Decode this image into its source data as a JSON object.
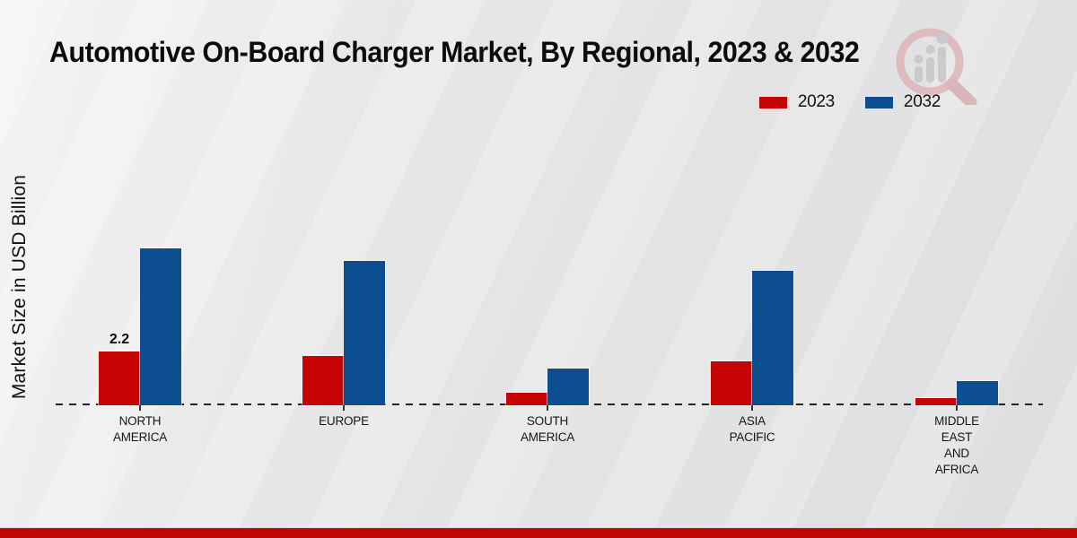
{
  "title": "Automotive On-Board Charger Market, By Regional, 2023 & 2032",
  "legend": {
    "items": [
      {
        "label": "2023",
        "color": "#c70404"
      },
      {
        "label": "2032",
        "color": "#0d4e91"
      }
    ]
  },
  "chart_data": {
    "type": "bar",
    "title": "Automotive On-Board Charger Market, By Regional, 2023 & 2032",
    "xlabel": "",
    "ylabel": "Market Size in USD Billion",
    "ylim": [
      0,
      7
    ],
    "grid": false,
    "legend_position": "top-right",
    "axis_style": "dashed-zero-baseline-only",
    "categories": [
      "North America",
      "Europe",
      "South America",
      "Asia Pacific",
      "Middle East and Africa"
    ],
    "category_label_lines": [
      [
        "NORTH",
        "AMERICA"
      ],
      [
        "EUROPE"
      ],
      [
        "SOUTH",
        "AMERICA"
      ],
      [
        "ASIA",
        "PACIFIC"
      ],
      [
        "MIDDLE",
        "EAST",
        "AND",
        "AFRICA"
      ]
    ],
    "series": [
      {
        "name": "2023",
        "color": "#c70404",
        "values": [
          2.2,
          2.0,
          0.5,
          1.8,
          0.3
        ]
      },
      {
        "name": "2032",
        "color": "#0d4e91",
        "values": [
          6.4,
          5.9,
          1.5,
          5.5,
          1.0
        ]
      }
    ],
    "bar_labels": [
      {
        "category_index": 0,
        "series": "2023",
        "text": "2.2"
      }
    ]
  },
  "watermark": {
    "name": "magnifier-bar-chart-logo"
  },
  "footer": {
    "color": "#c00505"
  }
}
